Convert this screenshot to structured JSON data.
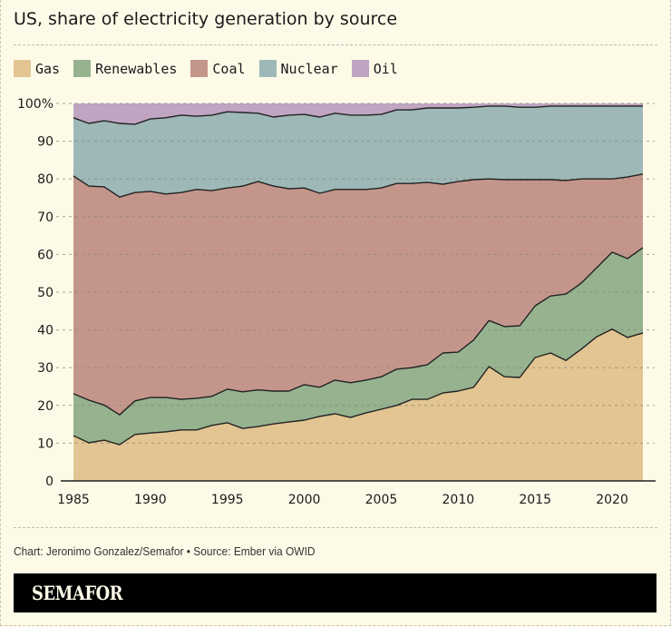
{
  "header": {
    "title": "US, share of electricity generation by source"
  },
  "legend": [
    {
      "label": "Gas",
      "color": "#e2c592"
    },
    {
      "label": "Renewables",
      "color": "#96b28f"
    },
    {
      "label": "Coal",
      "color": "#c4968b"
    },
    {
      "label": "Nuclear",
      "color": "#9db8b7"
    },
    {
      "label": "Oil",
      "color": "#c0a5c2"
    }
  ],
  "footer": {
    "credit": "Chart: Jeronimo Gonzalez/Semafor • Source: Ember via OWID",
    "brand": "SEMAFOR"
  },
  "chart_data": {
    "type": "area",
    "stacked": true,
    "title": "US, share of electricity generation by source",
    "xlabel": "",
    "ylabel": "",
    "x": [
      1985,
      1986,
      1987,
      1988,
      1989,
      1990,
      1991,
      1992,
      1993,
      1994,
      1995,
      1996,
      1997,
      1998,
      1999,
      2000,
      2001,
      2002,
      2003,
      2004,
      2005,
      2006,
      2007,
      2008,
      2009,
      2010,
      2011,
      2012,
      2013,
      2014,
      2015,
      2016,
      2017,
      2018,
      2019,
      2020,
      2021,
      2022
    ],
    "xlim": [
      1985,
      2022
    ],
    "ylim": [
      0,
      100
    ],
    "x_ticks": [
      1985,
      1990,
      1995,
      2000,
      2005,
      2010,
      2015,
      2020
    ],
    "y_ticks": [
      0,
      10,
      20,
      30,
      40,
      50,
      60,
      70,
      80,
      90,
      100
    ],
    "y_tick_labels": [
      "0",
      "10",
      "20",
      "30",
      "40",
      "50",
      "60",
      "70",
      "80",
      "90",
      "100%"
    ],
    "grid": true,
    "legend_position": "top-left",
    "series": [
      {
        "name": "Gas",
        "color": "#e2c592",
        "values": [
          12.0,
          10.1,
          10.8,
          9.6,
          12.3,
          12.7,
          13.0,
          13.5,
          13.5,
          14.7,
          15.4,
          13.9,
          14.4,
          15.1,
          15.6,
          16.1,
          17.1,
          17.8,
          16.8,
          18.0,
          19.0,
          20.0,
          21.6,
          21.6,
          23.3,
          23.8,
          24.8,
          30.3,
          27.6,
          27.4,
          32.7,
          33.9,
          31.9,
          34.9,
          38.2,
          40.2,
          38.0,
          39.2
        ]
      },
      {
        "name": "Renewables",
        "color": "#96b28f",
        "values": [
          11.1,
          11.3,
          9.3,
          7.9,
          8.9,
          9.4,
          9.1,
          8.1,
          8.4,
          7.7,
          8.9,
          9.7,
          9.7,
          8.7,
          8.2,
          9.4,
          7.7,
          8.9,
          9.2,
          8.7,
          8.6,
          9.6,
          8.4,
          9.2,
          10.6,
          10.3,
          12.5,
          12.2,
          13.3,
          13.7,
          13.7,
          15.1,
          17.6,
          17.5,
          18.3,
          20.4,
          20.9,
          22.6
        ]
      },
      {
        "name": "Coal",
        "color": "#c4968b",
        "values": [
          57.7,
          56.7,
          57.8,
          57.7,
          55.2,
          54.6,
          53.9,
          54.8,
          55.3,
          54.5,
          53.3,
          54.5,
          55.2,
          54.3,
          53.6,
          52.1,
          51.4,
          50.5,
          51.2,
          50.5,
          50.0,
          49.2,
          48.8,
          48.3,
          44.7,
          45.2,
          42.5,
          37.5,
          38.9,
          38.7,
          33.4,
          30.8,
          30.1,
          27.6,
          23.5,
          19.4,
          21.6,
          19.5
        ]
      },
      {
        "name": "Nuclear",
        "color": "#9db8b7",
        "values": [
          15.4,
          16.6,
          17.5,
          19.5,
          18.1,
          19.2,
          20.2,
          20.5,
          19.4,
          20.0,
          20.2,
          19.5,
          18.1,
          18.3,
          19.5,
          19.5,
          20.2,
          20.2,
          19.7,
          19.7,
          19.5,
          19.5,
          19.5,
          19.7,
          20.2,
          19.5,
          19.2,
          19.3,
          19.5,
          19.2,
          19.2,
          19.5,
          19.7,
          19.3,
          19.3,
          19.3,
          18.8,
          18.0
        ]
      },
      {
        "name": "Oil",
        "color": "#c0a5c2",
        "values": [
          3.8,
          5.3,
          4.6,
          5.3,
          5.5,
          4.1,
          3.8,
          3.1,
          3.4,
          3.1,
          2.2,
          2.4,
          2.6,
          3.6,
          3.1,
          2.9,
          3.6,
          2.6,
          3.1,
          3.1,
          2.9,
          1.7,
          1.7,
          1.2,
          1.2,
          1.2,
          1.0,
          0.7,
          0.7,
          1.0,
          1.0,
          0.7,
          0.7,
          0.7,
          0.7,
          0.7,
          0.7,
          0.7
        ]
      }
    ]
  }
}
